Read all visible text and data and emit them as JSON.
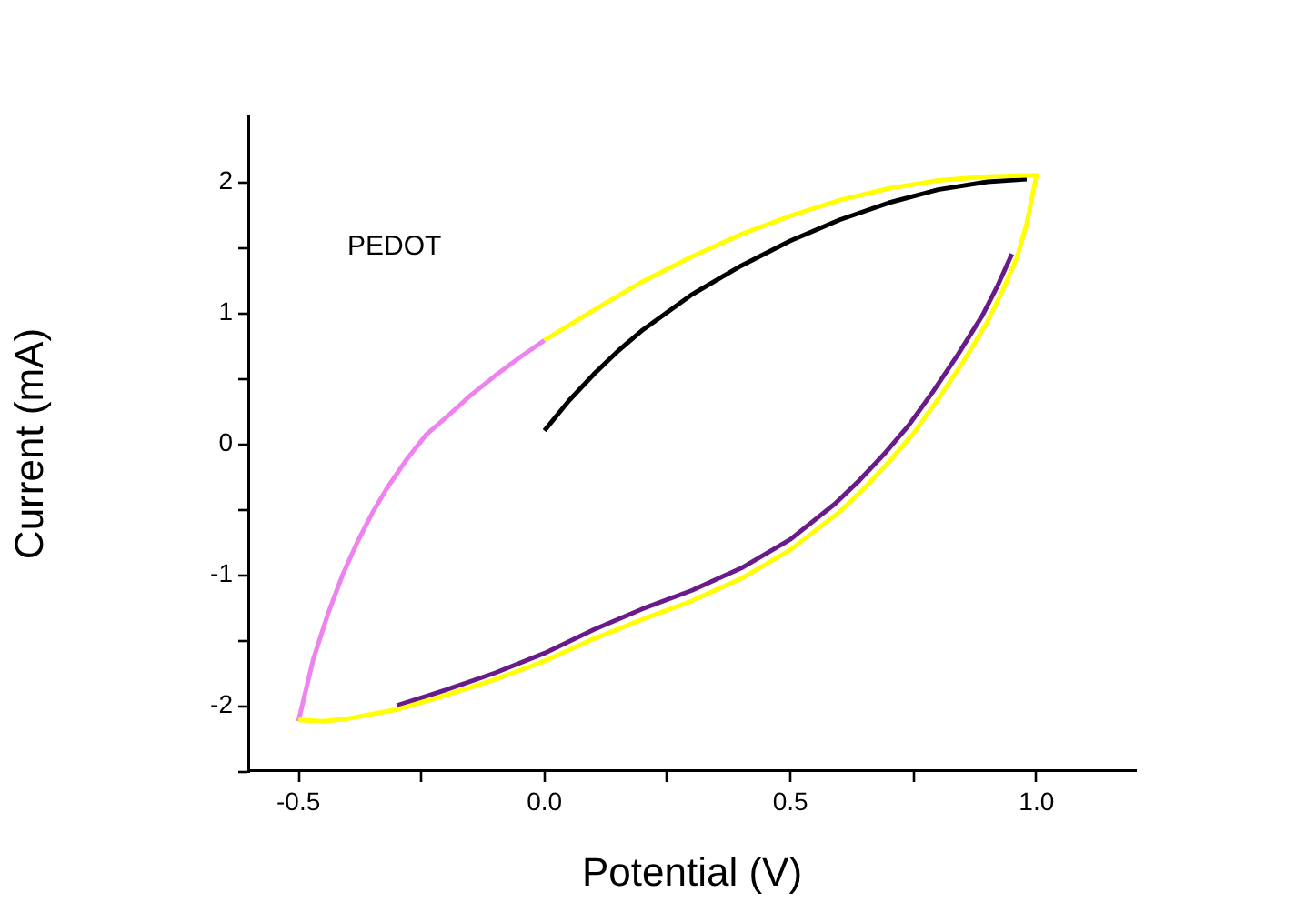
{
  "chart_data": {
    "type": "line",
    "xlabel": "Potential (V)",
    "ylabel": "Current (mA)",
    "annotations": [
      "PEDOT"
    ],
    "xlim": [
      -0.6,
      1.2
    ],
    "xticks": [
      -0.5,
      {
        "value": -0.25,
        "label": null
      },
      {
        "value": 0,
        "label": "0.0"
      },
      {
        "value": 0.25,
        "label": null
      },
      0.5,
      {
        "value": 0.75,
        "label": null
      },
      {
        "value": 1,
        "label": "1.0"
      }
    ],
    "ylim": [
      -2.5,
      2.5
    ],
    "yticks": [
      {
        "value": -2.5,
        "label": null
      },
      -2,
      {
        "value": -1.5,
        "label": null
      },
      -1,
      {
        "value": -0.5,
        "label": null
      },
      0,
      {
        "value": 0.5,
        "label": null
      },
      1,
      {
        "value": 1.5,
        "label": null
      },
      2
    ],
    "marker": "none",
    "line_style": "solid",
    "series": [
      {
        "color": "#000000",
        "x": [
          0,
          0.05,
          0.1,
          0.15,
          0.2,
          0.3,
          0.4,
          0.5,
          0.6,
          0.7,
          0.8,
          0.9,
          0.98
        ],
        "values": [
          0.1,
          0.33,
          0.53,
          0.71,
          0.87,
          1.14,
          1.36,
          1.55,
          1.71,
          1.84,
          1.94,
          2.0,
          2.02
        ]
      },
      {
        "color": "#6a1b8a",
        "x": [
          0.95,
          0.92,
          0.89,
          0.84,
          0.79,
          0.74,
          0.69,
          0.64,
          0.59,
          0.5,
          0.4,
          0.3,
          0.2,
          0.1,
          0,
          -0.1,
          -0.2,
          -0.3
        ],
        "values": [
          1.45,
          1.2,
          0.98,
          0.68,
          0.4,
          0.14,
          -0.08,
          -0.28,
          -0.46,
          -0.73,
          -0.95,
          -1.12,
          -1.26,
          -1.42,
          -1.6,
          -1.75,
          -1.88,
          -2.0
        ]
      },
      {
        "color": "#ee82ee",
        "x": [
          -0.5,
          -0.47,
          -0.44,
          -0.41,
          -0.38,
          -0.35,
          -0.32,
          -0.28,
          -0.24,
          -0.2,
          -0.15,
          -0.1,
          -0.05,
          0
        ],
        "values": [
          -2.12,
          -1.65,
          -1.3,
          -1.0,
          -0.75,
          -0.53,
          -0.34,
          -0.12,
          0.07,
          0.2,
          0.37,
          0.52,
          0.66,
          0.79
        ]
      },
      {
        "color": "#ffff00",
        "x": [
          0,
          0.1,
          0.2,
          0.3,
          0.4,
          0.5,
          0.6,
          0.7,
          0.8,
          0.9,
          1,
          0.98,
          0.96,
          0.93,
          0.9,
          0.85,
          0.8,
          0.75,
          0.7,
          0.65,
          0.6,
          0.5,
          0.4,
          0.3,
          0.2,
          0.1,
          0,
          -0.1,
          -0.2,
          -0.3,
          -0.4,
          -0.45,
          -0.5
        ],
        "values": [
          0.79,
          1.02,
          1.24,
          1.43,
          1.6,
          1.74,
          1.86,
          1.95,
          2.01,
          2.04,
          2.05,
          1.68,
          1.42,
          1.16,
          0.93,
          0.62,
          0.34,
          0.08,
          -0.14,
          -0.34,
          -0.52,
          -0.81,
          -1.03,
          -1.2,
          -1.34,
          -1.49,
          -1.66,
          -1.8,
          -1.92,
          -2.03,
          -2.1,
          -2.12,
          -2.11
        ]
      }
    ]
  }
}
